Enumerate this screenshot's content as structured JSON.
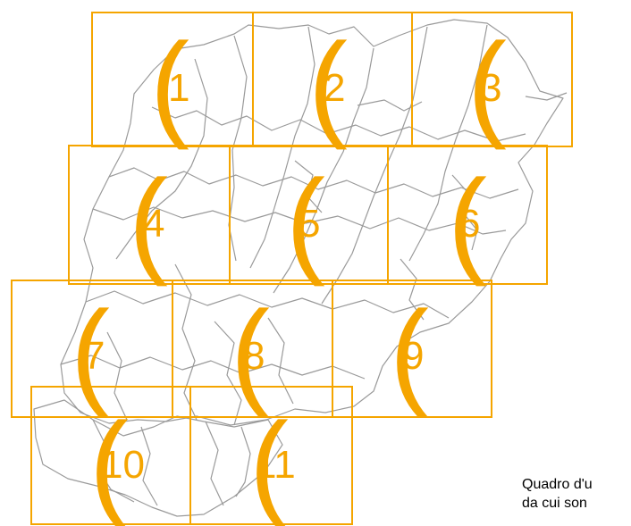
{
  "map": {
    "colors": {
      "frame": "#f5a500",
      "border": "#9a9a9a",
      "caption": "#000000"
    },
    "tiles": [
      {
        "number": "1",
        "paren": "("
      },
      {
        "number": "2",
        "paren": "("
      },
      {
        "number": "3",
        "paren": "("
      },
      {
        "number": "4",
        "paren": "("
      },
      {
        "number": "5",
        "paren": "("
      },
      {
        "number": "6",
        "paren": "("
      },
      {
        "number": "7",
        "paren": "("
      },
      {
        "number": "8",
        "paren": "("
      },
      {
        "number": "9",
        "paren": "("
      },
      {
        "number": "10",
        "paren": "("
      },
      {
        "number": "11",
        "paren": "("
      }
    ],
    "caption": {
      "line1": "Quadro d'u",
      "line2": "da cui son"
    }
  }
}
